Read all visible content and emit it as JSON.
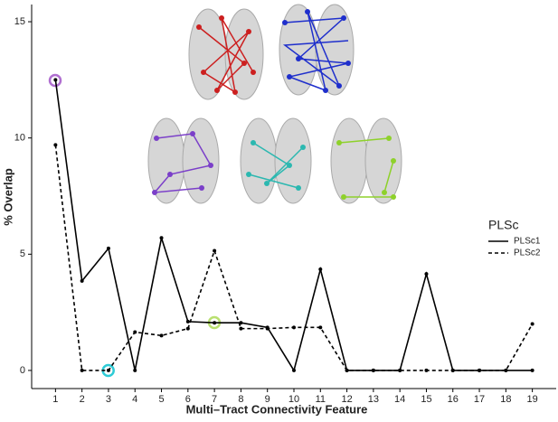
{
  "chart_data": {
    "type": "line",
    "x": [
      1,
      2,
      3,
      4,
      5,
      6,
      7,
      8,
      9,
      10,
      11,
      12,
      13,
      14,
      15,
      16,
      17,
      18,
      19
    ],
    "series": [
      {
        "name": "PLSc1",
        "color": "#000000",
        "linestyle": "solid",
        "values": [
          12.5,
          3.85,
          5.25,
          0,
          5.7,
          2.1,
          2.05,
          2.05,
          1.85,
          0,
          4.35,
          0,
          0,
          0,
          4.15,
          0,
          0,
          0,
          0
        ]
      },
      {
        "name": "PLSc2",
        "color": "#000000",
        "linestyle": "dashed",
        "values": [
          9.7,
          0,
          0,
          1.65,
          1.5,
          1.8,
          5.15,
          1.8,
          1.8,
          1.85,
          1.85,
          0,
          0,
          0,
          0,
          0,
          0,
          0,
          2.0
        ]
      }
    ],
    "xlabel": "Multi–Tract Connectivity Feature",
    "ylabel": "% Overlap",
    "legend_title": "PLSc",
    "legend": "right",
    "xlim": [
      0.1,
      19.9
    ],
    "xticks": [
      1,
      2,
      3,
      4,
      5,
      6,
      7,
      8,
      9,
      10,
      11,
      12,
      13,
      14,
      15,
      16,
      17,
      18,
      19
    ],
    "ylim": [
      -0.78,
      15.74
    ],
    "yticks": [
      0,
      5,
      10,
      15
    ]
  }
}
